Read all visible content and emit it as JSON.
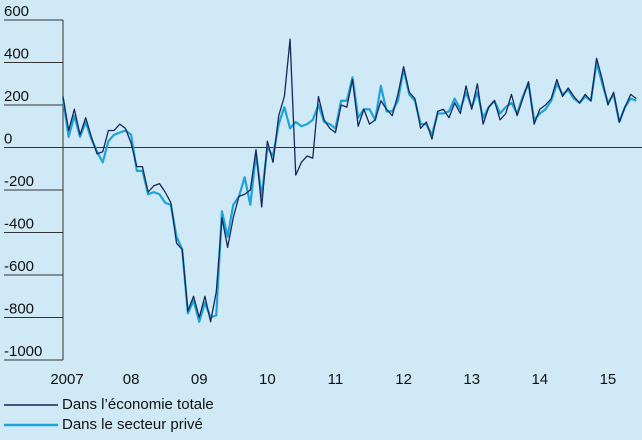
{
  "chart_data": {
    "type": "line",
    "categories": [
      "2007",
      null,
      null,
      null,
      null,
      null,
      null,
      null,
      null,
      null,
      null,
      null,
      "08",
      null,
      null,
      null,
      null,
      null,
      null,
      null,
      null,
      null,
      null,
      null,
      "09",
      null,
      null,
      null,
      null,
      null,
      null,
      null,
      null,
      null,
      null,
      null,
      "10",
      null,
      null,
      null,
      null,
      null,
      null,
      null,
      null,
      null,
      null,
      null,
      "11",
      null,
      null,
      null,
      null,
      null,
      null,
      null,
      null,
      null,
      null,
      null,
      "12",
      null,
      null,
      null,
      null,
      null,
      null,
      null,
      null,
      null,
      null,
      null,
      "13",
      null,
      null,
      null,
      null,
      null,
      null,
      null,
      null,
      null,
      null,
      null,
      "14",
      null,
      null,
      null,
      null,
      null,
      null,
      null,
      null,
      null,
      null,
      null,
      "15",
      null,
      null,
      null,
      null,
      null
    ],
    "series": [
      {
        "name": "Dans l’économie totale",
        "color": "#14285a",
        "values": [
          240,
          80,
          180,
          60,
          140,
          50,
          -30,
          -20,
          80,
          80,
          110,
          90,
          20,
          -90,
          -90,
          -210,
          -180,
          -170,
          -210,
          -260,
          -450,
          -480,
          -770,
          -700,
          -800,
          -700,
          -820,
          -680,
          -330,
          -470,
          -330,
          -230,
          -220,
          -200,
          -10,
          -280,
          30,
          -70,
          150,
          240,
          510,
          -130,
          -70,
          -40,
          -50,
          240,
          130,
          90,
          70,
          200,
          190,
          320,
          100,
          180,
          110,
          130,
          220,
          180,
          150,
          250,
          380,
          260,
          230,
          90,
          120,
          40,
          170,
          180,
          140,
          210,
          160,
          290,
          180,
          300,
          110,
          190,
          220,
          130,
          160,
          250,
          150,
          230,
          310,
          110,
          180,
          200,
          230,
          320,
          240,
          280,
          240,
          210,
          250,
          220,
          420,
          320,
          200,
          260,
          120,
          190,
          250,
          230
        ]
      },
      {
        "name": "Dans le secteur privé",
        "color": "#1ca3dc",
        "values": [
          230,
          50,
          150,
          50,
          120,
          40,
          -20,
          -70,
          30,
          60,
          70,
          80,
          60,
          -110,
          -110,
          -220,
          -210,
          -220,
          -260,
          -270,
          -420,
          -480,
          -780,
          -720,
          -820,
          -730,
          -800,
          -790,
          -300,
          -420,
          -270,
          -230,
          -140,
          -270,
          -30,
          -230,
          0,
          -40,
          110,
          190,
          90,
          120,
          100,
          110,
          130,
          200,
          120,
          110,
          90,
          220,
          220,
          330,
          140,
          180,
          180,
          130,
          290,
          170,
          170,
          220,
          370,
          250,
          220,
          110,
          110,
          60,
          160,
          160,
          170,
          230,
          180,
          260,
          190,
          260,
          140,
          190,
          220,
          160,
          190,
          210,
          160,
          240,
          300,
          130,
          160,
          180,
          220,
          300,
          250,
          270,
          230,
          210,
          240,
          220,
          400,
          300,
          210,
          250,
          120,
          190,
          230,
          220
        ]
      }
    ],
    "ylim": [
      -1000,
      600
    ],
    "yticks": [
      -1000,
      -800,
      -600,
      -400,
      -200,
      0,
      200,
      400,
      600
    ],
    "grid": false
  }
}
